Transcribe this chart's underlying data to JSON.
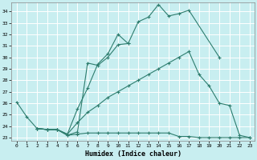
{
  "xlabel": "Humidex (Indice chaleur)",
  "bg_color": "#c8eef0",
  "line_color": "#2e7d6e",
  "grid_color": "#ffffff",
  "xlim": [
    -0.5,
    23.5
  ],
  "ylim": [
    22.7,
    34.8
  ],
  "yticks": [
    23,
    24,
    25,
    26,
    27,
    28,
    29,
    30,
    31,
    32,
    33,
    34
  ],
  "xticks": [
    0,
    1,
    2,
    3,
    4,
    5,
    6,
    7,
    8,
    9,
    10,
    11,
    12,
    13,
    14,
    15,
    16,
    17,
    18,
    19,
    20,
    21,
    22,
    23
  ],
  "s1_x": [
    0,
    1,
    2,
    3,
    4,
    5,
    6,
    7,
    8,
    9,
    10,
    11,
    12,
    13,
    14,
    15,
    16,
    17,
    20
  ],
  "s1_y": [
    26.1,
    24.8,
    23.8,
    23.7,
    23.7,
    23.2,
    23.5,
    29.5,
    29.3,
    30.0,
    31.1,
    31.2,
    33.1,
    33.5,
    34.6,
    33.6,
    33.8,
    34.1,
    30.0
  ],
  "s2_x": [
    2,
    3,
    4,
    5,
    6,
    7,
    8,
    9,
    10,
    11
  ],
  "s2_y": [
    23.8,
    23.7,
    23.7,
    23.3,
    25.5,
    27.3,
    29.4,
    30.3,
    32.0,
    31.2
  ],
  "s3_x": [
    2,
    3,
    4,
    5,
    6,
    7,
    8,
    9,
    10,
    11,
    12,
    13,
    14,
    15,
    16,
    17,
    18,
    19,
    20,
    21,
    22,
    23
  ],
  "s3_y": [
    23.8,
    23.7,
    23.7,
    23.3,
    24.3,
    25.2,
    25.8,
    26.5,
    27.0,
    27.5,
    28.0,
    28.5,
    29.0,
    29.5,
    30.0,
    30.5,
    28.5,
    27.5,
    26.0,
    25.8,
    23.2,
    23.0
  ],
  "s4_x": [
    2,
    3,
    4,
    5,
    6,
    7,
    8,
    9,
    10,
    11,
    12,
    13,
    14,
    15,
    16,
    17,
    18,
    19,
    20,
    21,
    22,
    23
  ],
  "s4_y": [
    23.8,
    23.7,
    23.7,
    23.2,
    23.3,
    23.4,
    23.4,
    23.4,
    23.4,
    23.4,
    23.4,
    23.4,
    23.4,
    23.4,
    23.1,
    23.1,
    23.0,
    23.0,
    23.0,
    23.0,
    23.0,
    23.0
  ]
}
